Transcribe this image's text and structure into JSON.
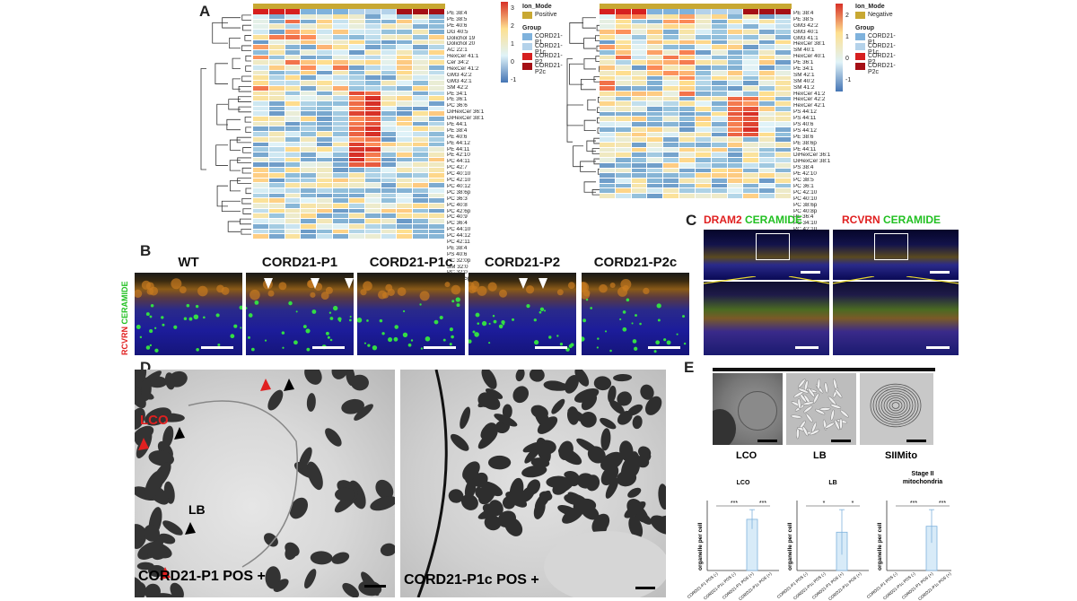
{
  "panels": {
    "a": "A",
    "b": "B",
    "c": "C",
    "d": "D",
    "e": "E"
  },
  "heatmap_pos": {
    "legend_title": "Ion_Mode",
    "legend_mode": "Positive",
    "group_title": "Group",
    "groups": [
      "CORD21-P1",
      "CORD21-P1c",
      "CORD21-P2",
      "CORD21-P2c"
    ],
    "scale": [
      "3",
      "2",
      "1",
      "0",
      "-1"
    ],
    "rows": [
      "PE 38:4",
      "PE 38:5",
      "PE 40:6",
      "DG 40:5",
      "Dolichol 19",
      "Dolichol 20",
      "AC 22:1",
      "HexCer 41:1",
      "Cer 34:2",
      "HexCer 41:2",
      "GM3 42:2",
      "GM3 42:1",
      "SM 42:2",
      "PE 34:1",
      "PE 36:1",
      "PC 36:6",
      "DiHexCer 36:1",
      "DiHexCer 38:1",
      "PE 44:1",
      "PE 38:4",
      "PE 40:6",
      "PE 44:12",
      "PE 44:11",
      "PE 42:10",
      "PC 44:11",
      "PC 42:7",
      "PC 40:10",
      "PC 42:10",
      "PC 40:12",
      "PC 38:6p",
      "PC 36:3",
      "PC 40:8",
      "PC 42:6p",
      "PC 40:9",
      "PC 36:4",
      "PC 44:10",
      "PC 44:12",
      "PC 42:11",
      "PE 38:4",
      "PS 40:6",
      "PC 32:0p",
      "SM 32:0",
      "PC 32:0",
      "PC 36:5p"
    ]
  },
  "heatmap_neg": {
    "legend_title": "Ion_Mode",
    "legend_mode": "Negative",
    "group_title": "Group",
    "groups": [
      "CORD21-P1",
      "CORD21-P1c",
      "CORD21-P2",
      "CORD21-P2c"
    ],
    "scale": [
      "2",
      "1",
      "0",
      "-1"
    ],
    "rows": [
      "PE 38:4",
      "PE 38:5",
      "GM3 42:2",
      "GM3 40:1",
      "GM3 41:1",
      "HexCer 38:1",
      "SM 40:1",
      "HexCer 40:1",
      "PE 36:1",
      "PE 34:1",
      "SM 42:1",
      "SM 40:2",
      "SM 41:2",
      "HexCer 41:2",
      "HexCer 42:2",
      "HexCer 42:1",
      "PS 44:12",
      "PS 44:11",
      "PS 40:6",
      "PS 44:12",
      "PE 38:6",
      "PE 38:6p",
      "PE 44:11",
      "DiHexCer 36:1",
      "DiHexCer 38:1",
      "PS 38:4",
      "PE 42:10",
      "PC 38:5",
      "PC 36:1",
      "PC 42:10",
      "PC 40:10",
      "PC 38:6p",
      "PC 40:8p",
      "PE 36:4",
      "PC 34:10",
      "PC 42:10"
    ]
  },
  "panel_b": {
    "stain_red": "RCVRN",
    "stain_green": "CERAMIDE",
    "labels": [
      "WT",
      "CORD21-P1",
      "CORD21-P1c",
      "CORD21-P2",
      "CORD21-P2c"
    ]
  },
  "panel_c": {
    "l1_red": "DRAM2",
    "l1_green": "CERAMIDE",
    "l2_red": "RCVRN",
    "l2_green": "CERAMIDE"
  },
  "panel_d": {
    "lco": "LCO",
    "lb": "LB",
    "left_caption": "CORD21-P1 POS +",
    "right_caption": "CORD21-P1c POS +"
  },
  "panel_e": {
    "tem_labels": [
      "LCO",
      "LB",
      "SIIMito"
    ]
  },
  "chart_data": [
    {
      "type": "bar",
      "title": "LCO",
      "ylabel": "organelle per cell",
      "categories": [
        "CORD21-P1 POS (-)",
        "CORD21-P1c POS (-)",
        "CORD21-P1 POS (+)",
        "CORD21-P1c POS (+)"
      ],
      "values": [
        0,
        0,
        5.3,
        0
      ],
      "errors": [
        0,
        0,
        1.0,
        0
      ],
      "sig": [
        "***",
        "***"
      ]
    },
    {
      "type": "bar",
      "title": "LB",
      "ylabel": "organelle per cell",
      "categories": [
        "CORD21-P1 POS (-)",
        "CORD21-P1c POS (-)",
        "CORD21-P1 POS (+)",
        "CORD21-P1c POS (+)"
      ],
      "values": [
        0,
        0,
        3.4,
        0
      ],
      "errors": [
        0,
        0,
        2.0,
        0
      ],
      "sig": [
        "*",
        "*"
      ]
    },
    {
      "type": "bar",
      "title": "Stage II mitochondria",
      "ylabel": "organelle per cell",
      "categories": [
        "CORD21-P1 POS (-)",
        "CORD21-P1c POS (-)",
        "CORD21-P1 POS (+)",
        "CORD21-P1c POS (+)"
      ],
      "values": [
        0,
        0,
        1.6,
        0
      ],
      "errors": [
        0,
        0,
        0.6,
        0
      ],
      "sig": [
        "***",
        "***"
      ]
    }
  ],
  "colors": {
    "gold": "#c8a832",
    "p1": "#7fb2dc",
    "p1c": "#b4d2ea",
    "p2": "#d61f1f",
    "p2c": "#a50f15",
    "bar_fill": "#d8ebf8",
    "bar_stroke": "#7fb2dc"
  }
}
